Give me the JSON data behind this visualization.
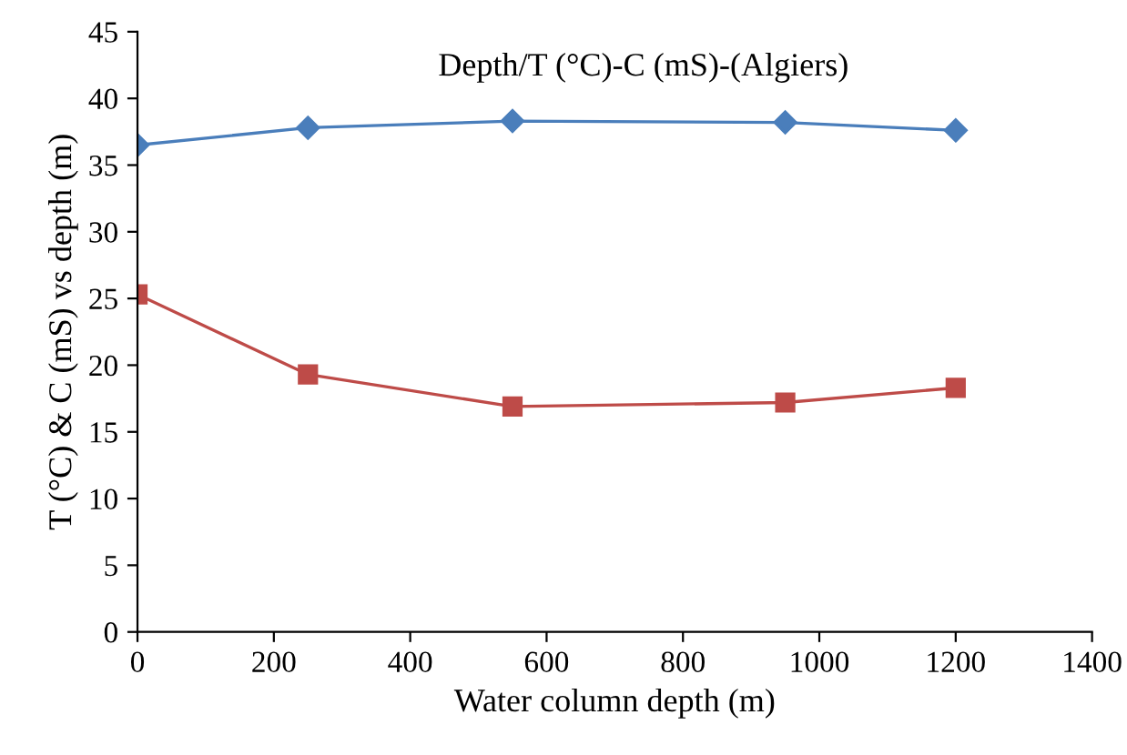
{
  "chart_data": {
    "type": "line",
    "title": "Depth/T (°C)-C (mS)-(Algiers)",
    "xlabel": "Water column depth (m)",
    "ylabel": "T (°C) & C (mS) vs depth (m)",
    "x": [
      0,
      250,
      550,
      950,
      1200
    ],
    "series": [
      {
        "color": "#4a7ebb",
        "marker": "diamond",
        "values": [
          36.5,
          37.8,
          38.3,
          38.2,
          37.6
        ]
      },
      {
        "color": "#be4b48",
        "marker": "square",
        "values": [
          25.3,
          19.3,
          16.9,
          17.2,
          18.3
        ]
      }
    ],
    "xlim": [
      0,
      1400
    ],
    "xticks": [
      0,
      200,
      400,
      600,
      800,
      1000,
      1200,
      1400
    ],
    "ylim": [
      0,
      45
    ],
    "yticks": [
      0,
      5,
      10,
      15,
      20,
      25,
      30,
      35,
      40,
      45
    ],
    "grid": false,
    "line_style": "solid"
  }
}
